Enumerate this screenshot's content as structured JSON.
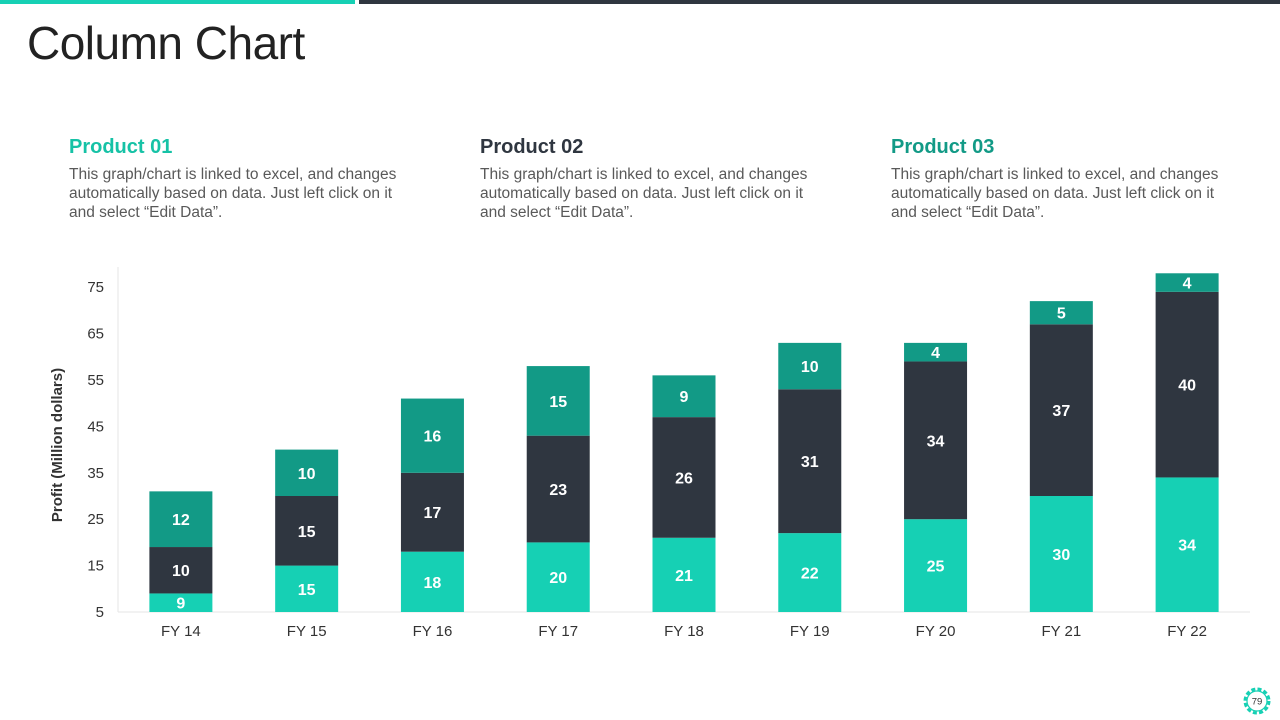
{
  "slide": {
    "title": "Column Chart",
    "page_number": "79"
  },
  "products": [
    {
      "title": "Product 01",
      "color": "#16c2a6",
      "text": "This graph/chart is linked to excel, and changes automatically based on data. Just left click on it and select “Edit Data”."
    },
    {
      "title": "Product 02",
      "color": "#2f3640",
      "text": "This graph/chart is linked to excel, and changes automatically based on data. Just left click on it and select “Edit Data”."
    },
    {
      "title": "Product 03",
      "color": "#129a86",
      "text": "This graph/chart is linked to excel, and changes automatically based on data. Just left click on it and select “Edit Data”."
    }
  ],
  "colors": {
    "accent_teal": "#16d0b4",
    "dark": "#2f3640",
    "dark_teal": "#129a86"
  },
  "chart_data": {
    "type": "bar",
    "stacked": true,
    "title": "",
    "xlabel": "",
    "ylabel": "Profit  (Million dollars)",
    "ylim": [
      5,
      80
    ],
    "yticks": [
      5,
      15,
      25,
      35,
      45,
      55,
      65,
      75
    ],
    "categories": [
      "FY 14",
      "FY 15",
      "FY 16",
      "FY 17",
      "FY 18",
      "FY 19",
      "FY 20",
      "FY 21",
      "FY 22"
    ],
    "series": [
      {
        "name": "Product 01",
        "color": "#16d0b4",
        "values": [
          9,
          15,
          18,
          20,
          21,
          22,
          25,
          30,
          34
        ]
      },
      {
        "name": "Product 02",
        "color": "#2f3640",
        "values": [
          10,
          15,
          17,
          23,
          26,
          31,
          34,
          37,
          40
        ]
      },
      {
        "name": "Product 03",
        "color": "#129a86",
        "values": [
          12,
          10,
          16,
          15,
          9,
          10,
          4,
          5,
          4
        ]
      }
    ]
  }
}
